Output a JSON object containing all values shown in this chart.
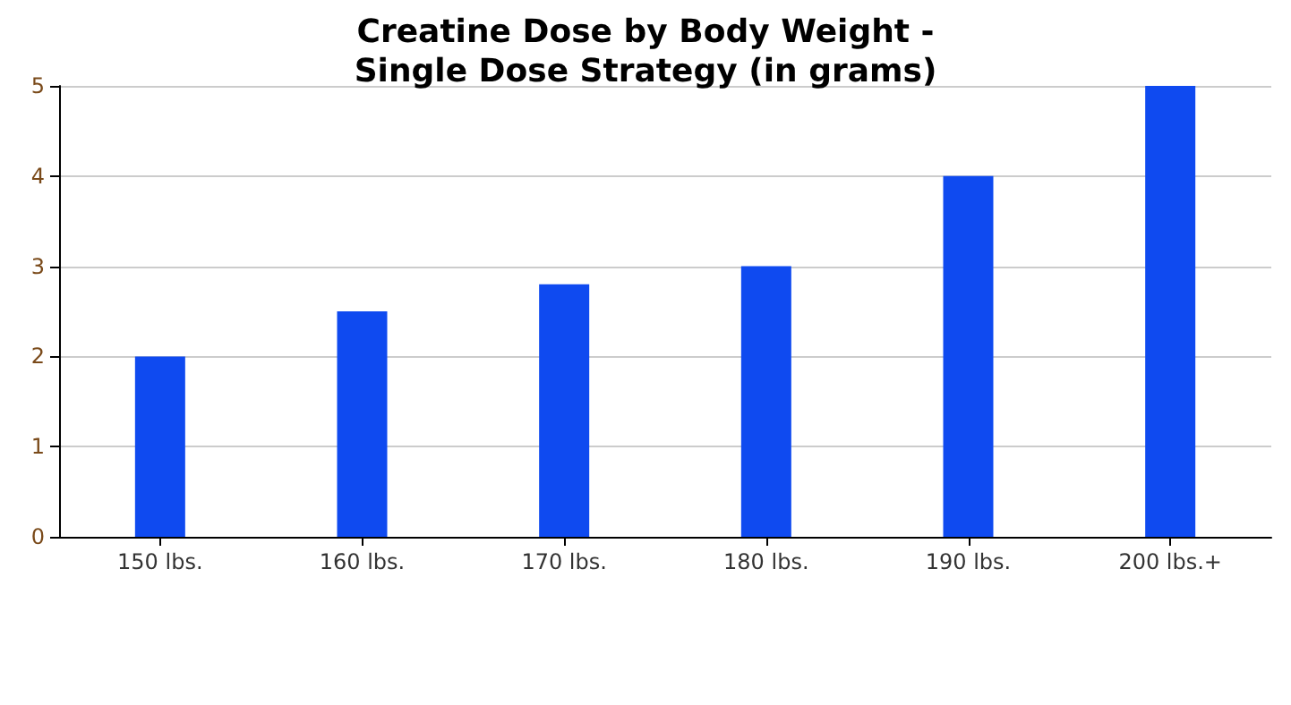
{
  "chart_data": {
    "type": "bar",
    "title": "Creatine Dose by Body Weight -\nSingle Dose Strategy (in grams)",
    "categories": [
      "150 lbs.",
      "160 lbs.",
      "170 lbs.",
      "180 lbs.",
      "190 lbs.",
      "200 lbs.+"
    ],
    "values": [
      2,
      2.5,
      2.8,
      3,
      4,
      5
    ],
    "color": "#0f4af0",
    "ylim": [
      0,
      5
    ],
    "yticks": [
      0,
      1,
      2,
      3,
      4,
      5
    ],
    "grid": "y"
  }
}
